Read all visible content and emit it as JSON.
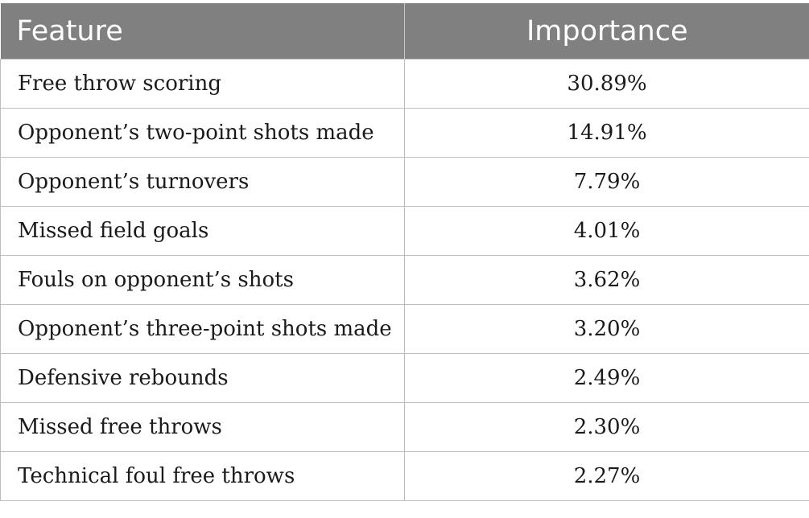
{
  "table": {
    "headers": {
      "feature": "Feature",
      "importance": "Importance"
    },
    "rows": [
      {
        "feature": "Free throw scoring",
        "importance": "30.89%"
      },
      {
        "feature": "Opponent’s two-point shots made",
        "importance": "14.91%"
      },
      {
        "feature": "Opponent’s turnovers",
        "importance": "7.79%"
      },
      {
        "feature": "Missed field goals",
        "importance": "4.01%"
      },
      {
        "feature": "Fouls on opponent’s shots",
        "importance": "3.62%"
      },
      {
        "feature": "Opponent’s three-point shots made",
        "importance": "3.20%"
      },
      {
        "feature": "Defensive rebounds",
        "importance": "2.49%"
      },
      {
        "feature": "Missed free throws",
        "importance": "2.30%"
      },
      {
        "feature": "Technical foul free throws",
        "importance": "2.27%"
      }
    ]
  },
  "colors": {
    "header_background": "#808080",
    "header_text": "#ffffff",
    "border": "#bdbdbd"
  }
}
